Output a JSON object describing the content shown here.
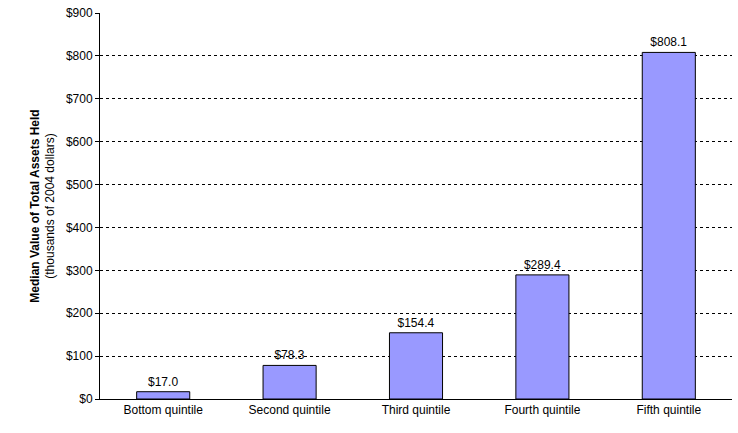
{
  "chart_data": {
    "type": "bar",
    "y_label": [
      "Median Value of Total Assets Held",
      "(thousands of 2004 dollars)"
    ],
    "categories": [
      "Bottom quintile",
      "Second quintile",
      "Third quintile",
      "Fourth quintile",
      "Fifth quintile"
    ],
    "values": [
      17.0,
      78.3,
      154.4,
      289.4,
      808.1
    ],
    "value_labels": [
      "$17.0",
      "$78.3",
      "$154.4",
      "$289.4",
      "$808.1"
    ],
    "data_labels": true,
    "color": "#9999ff",
    "ylim": [
      0,
      900
    ],
    "yticks": [
      {
        "value": 0,
        "label": "$0"
      },
      {
        "value": 100,
        "label": "$100"
      },
      {
        "value": 200,
        "label": "$200"
      },
      {
        "value": 300,
        "label": "$300"
      },
      {
        "value": 400,
        "label": "$400"
      },
      {
        "value": 500,
        "label": "$500"
      },
      {
        "value": 600,
        "label": "$600"
      },
      {
        "value": 700,
        "label": "$700"
      },
      {
        "value": 800,
        "label": "$800"
      },
      {
        "value": 900,
        "label": "$900"
      }
    ],
    "grid": true
  }
}
